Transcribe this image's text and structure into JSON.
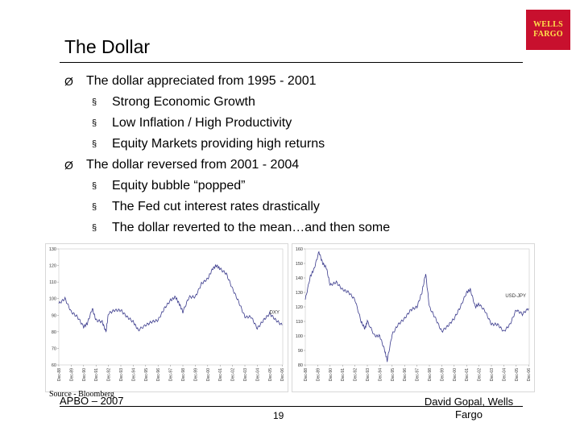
{
  "logo": {
    "line1": "WELLS",
    "line2": "FARGO"
  },
  "slide": {
    "title": "The Dollar",
    "bullets": [
      {
        "level": 1,
        "marker": "Ø",
        "text": "The dollar appreciated from 1995 - 2001"
      },
      {
        "level": 2,
        "marker": "§",
        "text": "Strong Economic Growth"
      },
      {
        "level": 2,
        "marker": "§",
        "text": "Low Inflation / High Productivity"
      },
      {
        "level": 2,
        "marker": "§",
        "text": "Equity Markets providing high returns"
      },
      {
        "level": 1,
        "marker": "Ø",
        "text": "The dollar reversed from 2001 - 2004"
      },
      {
        "level": 2,
        "marker": "§",
        "text": "Equity bubble “popped”"
      },
      {
        "level": 2,
        "marker": "§",
        "text": "The Fed cut interest rates drastically"
      },
      {
        "level": 2,
        "marker": "§",
        "text": "The dollar reverted to the mean…and then some"
      }
    ]
  },
  "chart_data": [
    {
      "type": "line",
      "series_label": "DXY",
      "ylim": [
        60,
        130
      ],
      "yticks": [
        "130",
        "120",
        "110",
        "100",
        "90",
        "80",
        "70",
        "60"
      ],
      "xticks": [
        "Dec-88",
        "Dec-89",
        "Dec-90",
        "Dec-91",
        "Dec-92",
        "Dec-93",
        "Dec-94",
        "Dec-95",
        "Dec-96",
        "Dec-97",
        "Dec-98",
        "Dec-99",
        "Dec-00",
        "Dec-01",
        "Dec-02",
        "Dec-03",
        "Dec-04",
        "Dec-05",
        "Dec-06"
      ],
      "x": [
        1988.9,
        1989.4,
        1989.9,
        1990.4,
        1990.9,
        1991.2,
        1991.6,
        1991.9,
        1992.4,
        1992.7,
        1992.9,
        1993.4,
        1993.9,
        1994.4,
        1994.9,
        1995.3,
        1995.9,
        1996.4,
        1996.9,
        1997.4,
        1997.9,
        1998.3,
        1998.6,
        1998.9,
        1999.4,
        1999.9,
        2000.4,
        2000.9,
        2001.3,
        2001.6,
        2001.9,
        2002.4,
        2002.9,
        2003.4,
        2003.9,
        2004.4,
        2004.9,
        2005.4,
        2005.9,
        2006.4,
        2006.9
      ],
      "values": [
        97,
        100,
        92,
        89,
        83,
        85,
        94,
        87,
        86,
        80,
        91,
        93,
        93,
        89,
        86,
        81,
        84,
        86,
        87,
        94,
        99,
        101,
        97,
        92,
        101,
        101,
        109,
        112,
        118,
        120,
        118,
        115,
        106,
        98,
        89,
        89,
        82,
        87,
        91,
        87,
        84
      ],
      "color": "#3a3a8c"
    },
    {
      "type": "line",
      "series_label": "USD-JPY",
      "ylim": [
        80,
        160
      ],
      "yticks": [
        "160",
        "150",
        "140",
        "130",
        "120",
        "110",
        "100",
        "90",
        "80"
      ],
      "xticks": [
        "Dec-88",
        "Dec-89",
        "Dec-90",
        "Dec-91",
        "Dec-92",
        "Dec-93",
        "Dec-94",
        "Dec-95",
        "Dec-96",
        "Dec-97",
        "Dec-98",
        "Dec-99",
        "Dec-00",
        "Dec-01",
        "Dec-02",
        "Dec-03",
        "Dec-04",
        "Dec-05",
        "Dec-06"
      ],
      "x": [
        1988.9,
        1989.3,
        1989.6,
        1990.0,
        1990.3,
        1990.6,
        1990.9,
        1991.4,
        1991.9,
        1992.4,
        1992.9,
        1993.4,
        1993.7,
        1993.9,
        1994.5,
        1994.9,
        1995.3,
        1995.5,
        1995.9,
        1996.4,
        1996.9,
        1997.4,
        1997.9,
        1998.3,
        1998.6,
        1998.9,
        1999.4,
        1999.9,
        2000.4,
        2000.9,
        2001.4,
        2001.9,
        2002.2,
        2002.6,
        2002.9,
        2003.4,
        2003.9,
        2004.4,
        2004.9,
        2005.4,
        2005.9,
        2006.4,
        2006.9
      ],
      "values": [
        125,
        141,
        146,
        158,
        150,
        147,
        135,
        137,
        132,
        130,
        125,
        110,
        105,
        110,
        100,
        100,
        90,
        83,
        101,
        108,
        112,
        118,
        120,
        130,
        143,
        120,
        112,
        103,
        107,
        112,
        120,
        130,
        132,
        120,
        122,
        117,
        108,
        108,
        103,
        108,
        118,
        115,
        119
      ],
      "color": "#3a3a8c"
    }
  ],
  "source": "Source - Bloomberg",
  "footer": {
    "left": "APBO – 2007",
    "page": "19",
    "right_line1": "David Gopal, Wells",
    "right_line2": "Fargo"
  }
}
